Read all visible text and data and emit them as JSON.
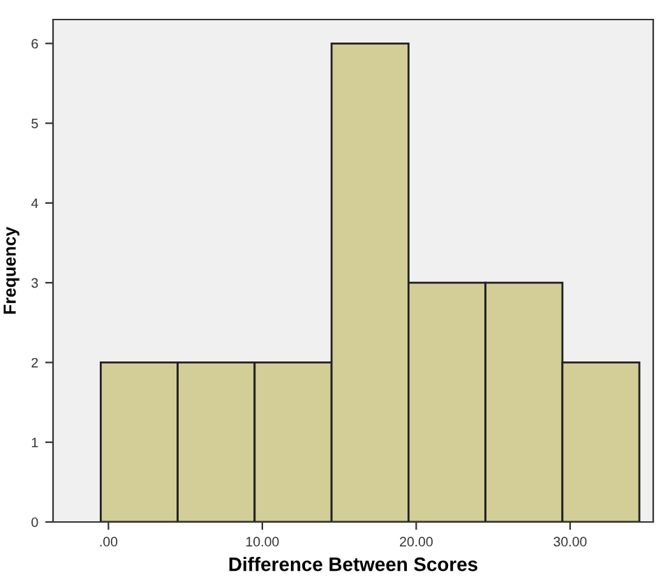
{
  "chart_data": {
    "type": "histogram",
    "xlabel": "Difference Between Scores",
    "ylabel": "Frequency",
    "bins": [
      -0.5,
      4.5,
      9.5,
      14.5,
      19.5,
      24.5,
      29.5,
      34.5
    ],
    "values": [
      2,
      2,
      2,
      6,
      3,
      3,
      2
    ],
    "color": "#d3ce97",
    "xlim": [
      -3.6,
      35.4
    ],
    "xticks": [
      {
        "value": 0,
        "label": ".00"
      },
      {
        "value": 10,
        "label": "10.00"
      },
      {
        "value": 20,
        "label": "20.00"
      },
      {
        "value": 30,
        "label": "30.00"
      }
    ],
    "ylim": [
      0,
      6.3
    ],
    "yticks": [
      0,
      1,
      2,
      3,
      4,
      5,
      6
    ],
    "grid": false
  }
}
